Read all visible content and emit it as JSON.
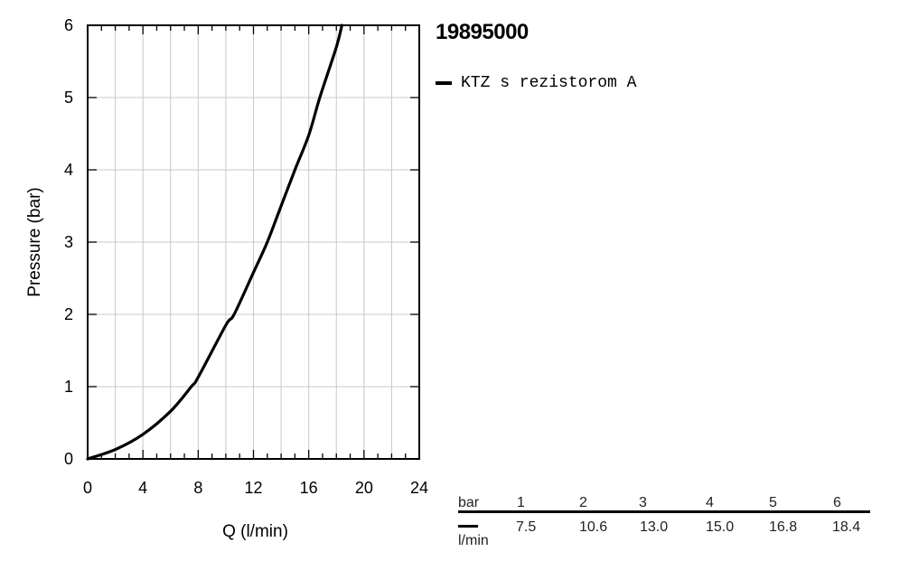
{
  "chart_data": {
    "type": "line",
    "title": "19895000",
    "xlabel": "Q (l/min)",
    "ylabel": "Pressure (bar)",
    "xlim": [
      0,
      24
    ],
    "ylim": [
      0,
      6
    ],
    "x_ticks": [
      "0",
      "4",
      "8",
      "12",
      "16",
      "20",
      "24"
    ],
    "y_ticks": [
      "0",
      "1",
      "2",
      "3",
      "4",
      "5",
      "6"
    ],
    "grid": true,
    "legend_position": "right",
    "series": [
      {
        "name": "KTZ s rezistorom A",
        "color": "#000000",
        "points": [
          [
            0,
            0
          ],
          [
            2,
            0.13
          ],
          [
            4,
            0.34
          ],
          [
            6,
            0.66
          ],
          [
            7.5,
            1.0
          ],
          [
            8,
            1.13
          ],
          [
            10,
            1.85
          ],
          [
            10.6,
            2.0
          ],
          [
            12,
            2.58
          ],
          [
            13.0,
            3.0
          ],
          [
            14,
            3.5
          ],
          [
            15.0,
            4.0
          ],
          [
            16,
            4.48
          ],
          [
            16.8,
            5.0
          ],
          [
            18,
            5.7
          ],
          [
            18.4,
            6.0
          ]
        ]
      }
    ]
  },
  "table": {
    "pressure_unit": "bar",
    "flow_unit": "l/min",
    "pressures": [
      "1",
      "2",
      "3",
      "4",
      "5",
      "6"
    ],
    "flows": [
      "7.5",
      "10.6",
      "13.0",
      "15.0",
      "16.8",
      "18.4"
    ]
  }
}
